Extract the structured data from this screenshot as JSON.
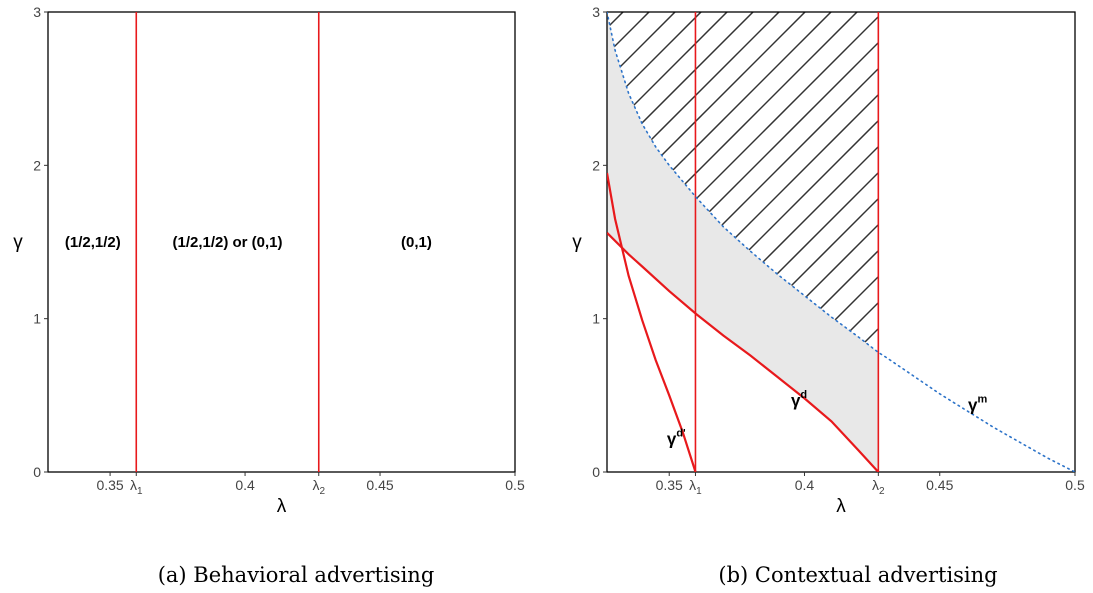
{
  "colors": {
    "threshold": "#e8191c",
    "boundary": "#2e74c9",
    "shade": "#e8e8e8",
    "hatch": "#333333"
  },
  "chart_data": [
    {
      "type": "line",
      "caption": "(a) Behavioral advertising",
      "xlabel": "λ",
      "ylabel": "γ",
      "xlim": [
        0.327,
        0.5
      ],
      "ylim": [
        0,
        3
      ],
      "grid": false,
      "yticks": [
        {
          "v": 0,
          "label": "0"
        },
        {
          "v": 1,
          "label": "1"
        },
        {
          "v": 2,
          "label": "2"
        },
        {
          "v": 3,
          "label": "3"
        }
      ],
      "xticks": [
        {
          "v": 0.35,
          "label": "0.35"
        },
        {
          "v": 0.3597,
          "label": "λ",
          "sub": "1"
        },
        {
          "v": 0.4,
          "label": "0.4"
        },
        {
          "v": 0.4273,
          "label": "λ",
          "sub": "2"
        },
        {
          "v": 0.45,
          "label": "0.45"
        },
        {
          "v": 0.5,
          "label": "0.5"
        }
      ],
      "vlines": [
        0.3597,
        0.4273
      ],
      "region_labels": [
        {
          "text": "(1/2,1/2)",
          "x": 0.3436,
          "y": 1.5
        },
        {
          "text": "(1/2,1/2) or (0,1)",
          "x": 0.3935,
          "y": 1.5
        },
        {
          "text": "(0,1)",
          "x": 0.4635,
          "y": 1.5
        }
      ]
    },
    {
      "type": "line",
      "caption": "(b) Contextual advertising",
      "xlabel": "λ",
      "ylabel": "γ",
      "xlim": [
        0.327,
        0.5
      ],
      "ylim": [
        0,
        3
      ],
      "grid": false,
      "yticks": [
        {
          "v": 0,
          "label": "0"
        },
        {
          "v": 1,
          "label": "1"
        },
        {
          "v": 2,
          "label": "2"
        },
        {
          "v": 3,
          "label": "3"
        }
      ],
      "xticks": [
        {
          "v": 0.35,
          "label": "0.35"
        },
        {
          "v": 0.3597,
          "label": "λ",
          "sub": "1"
        },
        {
          "v": 0.4,
          "label": "0.4"
        },
        {
          "v": 0.4273,
          "label": "λ",
          "sub": "2"
        },
        {
          "v": 0.45,
          "label": "0.45"
        },
        {
          "v": 0.5,
          "label": "0.5"
        }
      ],
      "vlines": [
        0.3597,
        0.4273
      ],
      "series": [
        {
          "name": "γ^m",
          "style": "dotted",
          "color": "#2e74c9",
          "x": [
            0.327,
            0.33,
            0.335,
            0.34,
            0.345,
            0.35,
            0.36,
            0.37,
            0.38,
            0.39,
            0.4,
            0.41,
            0.42,
            0.4273,
            0.43,
            0.44,
            0.45,
            0.46,
            0.47,
            0.48,
            0.49,
            0.5
          ],
          "y": [
            3.0,
            2.75,
            2.47,
            2.27,
            2.12,
            2.0,
            1.79,
            1.6,
            1.44,
            1.29,
            1.15,
            1.01,
            0.88,
            0.78,
            0.75,
            0.63,
            0.51,
            0.4,
            0.29,
            0.19,
            0.09,
            0.0
          ]
        },
        {
          "name": "γ^d",
          "style": "solid",
          "color": "#e8191c",
          "x": [
            0.327,
            0.335,
            0.34,
            0.35,
            0.36,
            0.37,
            0.38,
            0.39,
            0.4,
            0.41,
            0.42,
            0.4273
          ],
          "y": [
            1.56,
            1.42,
            1.34,
            1.18,
            1.03,
            0.89,
            0.76,
            0.62,
            0.48,
            0.33,
            0.14,
            0.0
          ]
        },
        {
          "name": "γ^d'",
          "style": "solid",
          "color": "#e8191c",
          "x": [
            0.327,
            0.33,
            0.335,
            0.34,
            0.345,
            0.35,
            0.355,
            0.3597
          ],
          "y": [
            1.95,
            1.65,
            1.28,
            0.99,
            0.73,
            0.5,
            0.26,
            0.0
          ]
        }
      ],
      "shaded_region": "between γ^d and γ^m for λ ≤ λ2",
      "hatched_region": "above γ^m for λ ≤ λ2",
      "curve_labels": [
        {
          "text": "γ",
          "sup": "d'",
          "x": 0.3526,
          "y": 0.22
        },
        {
          "text": "γ",
          "sup": "d",
          "x": 0.398,
          "y": 0.47
        },
        {
          "text": "γ",
          "sup": "m",
          "x": 0.464,
          "y": 0.44
        }
      ]
    }
  ]
}
